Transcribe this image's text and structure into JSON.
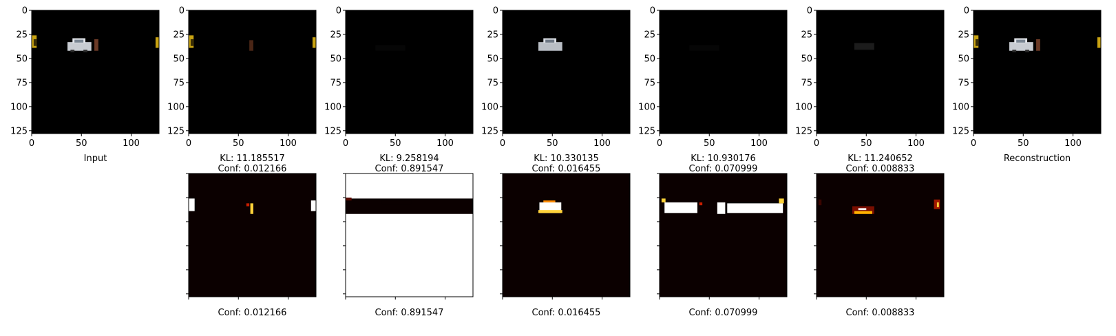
{
  "chart_data": {
    "type": "image-grid",
    "top_row": {
      "panels": [
        {
          "id": "input",
          "label": "Input",
          "content": "car-scene"
        },
        {
          "id": "slot1",
          "kl": "KL: 11.185517",
          "conf": "Conf: 0.012166",
          "content": "slot-posts"
        },
        {
          "id": "slot2",
          "kl": "KL: 9.258194",
          "conf": "Conf: 0.891547",
          "content": "slot-empty"
        },
        {
          "id": "slot3",
          "kl": "KL: 10.330135",
          "conf": "Conf: 0.016455",
          "content": "slot-car"
        },
        {
          "id": "slot4",
          "kl": "KL: 10.930176",
          "conf": "Conf: 0.070999",
          "content": "slot-empty"
        },
        {
          "id": "slot5",
          "kl": "KL: 11.240652",
          "conf": "Conf: 0.008833",
          "content": "slot-faint"
        },
        {
          "id": "recon",
          "label": "Reconstruction",
          "content": "car-scene"
        }
      ],
      "x_ticks": [
        "0",
        "50",
        "100"
      ],
      "y_ticks": [
        "0",
        "25",
        "50",
        "75",
        "100",
        "125"
      ],
      "xlim": [
        0,
        128
      ],
      "ylim": [
        128,
        0
      ]
    },
    "bottom_row": {
      "colormap": "hot",
      "panels": [
        {
          "label": "Conf: 0.012166",
          "mask": "posts"
        },
        {
          "label": "Conf: 0.891547",
          "mask": "background"
        },
        {
          "label": "Conf: 0.016455",
          "mask": "car"
        },
        {
          "label": "Conf: 0.070999",
          "mask": "band"
        },
        {
          "label": "Conf: 0.008833",
          "mask": "scattered"
        }
      ]
    }
  }
}
